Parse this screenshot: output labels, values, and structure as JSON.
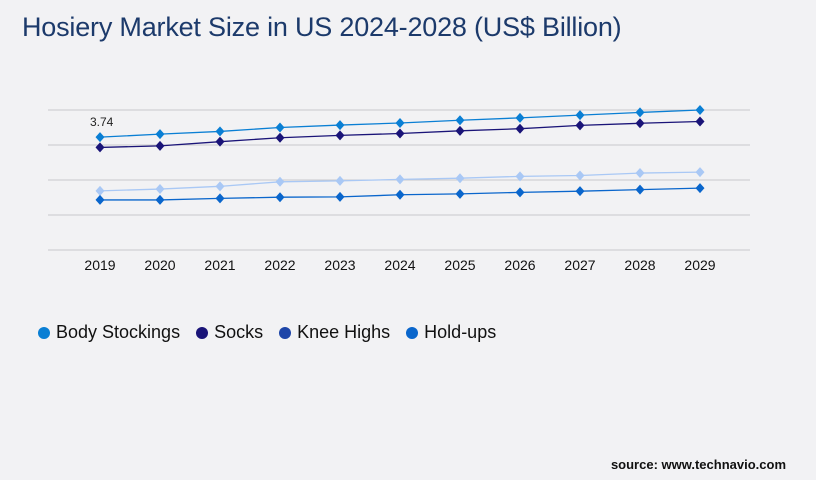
{
  "title": "Hosiery Market Size in US 2024-2028 (US$ Billion)",
  "source": "source: www.technavio.com",
  "chart_data": {
    "type": "line",
    "title": "Hosiery Market Size in US 2024-2028 (US$ Billion)",
    "x": [
      "2019",
      "2020",
      "2021",
      "2022",
      "2023",
      "2024",
      "2025",
      "2026",
      "2027",
      "2028",
      "2029"
    ],
    "ylim": [
      0,
      4.64
    ],
    "grid": true,
    "legend": "bottom-left",
    "series": [
      {
        "name": "Body Stockings",
        "color": "#0a7fd4",
        "line_color": "#0a7fd4",
        "values": [
          3.74,
          3.84,
          3.93,
          4.06,
          4.14,
          4.21,
          4.3,
          4.38,
          4.47,
          4.56,
          4.64
        ]
      },
      {
        "name": "Socks",
        "color": "#1a1478",
        "line_color": "#1a1478",
        "values": [
          3.4,
          3.45,
          3.59,
          3.72,
          3.8,
          3.86,
          3.95,
          4.02,
          4.13,
          4.2,
          4.26
        ]
      },
      {
        "name": "Knee Highs",
        "color": "#1d45a8",
        "line_color": "#a9c8f5",
        "values": [
          1.96,
          2.02,
          2.11,
          2.26,
          2.29,
          2.34,
          2.38,
          2.44,
          2.47,
          2.55,
          2.58
        ]
      },
      {
        "name": "Hold-ups",
        "color": "#0a66cc",
        "line_color": "#0a66cc",
        "values": [
          1.66,
          1.66,
          1.71,
          1.75,
          1.76,
          1.83,
          1.86,
          1.91,
          1.95,
          2.0,
          2.05
        ]
      }
    ],
    "annotations": [
      {
        "series": "Body Stockings",
        "x": "2019",
        "text": "3.74"
      }
    ]
  }
}
